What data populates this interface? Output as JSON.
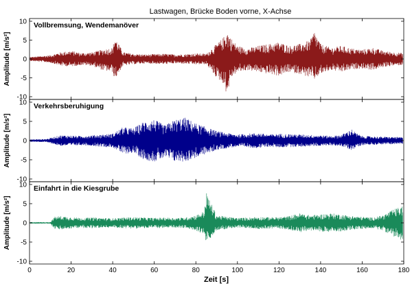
{
  "chart_data": {
    "type": "line",
    "title": "Lastwagen, Brücke Boden vorne, X-Achse",
    "xlabel": "Zeit [s]",
    "ylabel": "Amplitude [m/s²]",
    "xlim": [
      0,
      180
    ],
    "ylim": [
      -10,
      10
    ],
    "xticks": [
      "0",
      "20",
      "40",
      "60",
      "80",
      "100",
      "120",
      "140",
      "160",
      "180"
    ],
    "yticks": [
      "10",
      "5",
      "0",
      "-5",
      "-10"
    ],
    "grid": false,
    "panels": [
      {
        "label": "Vollbremsung, Wendemanöver",
        "color": "#8b1a1a",
        "envelope": {
          "x": [
            0,
            10,
            15,
            20,
            25,
            30,
            35,
            40,
            41,
            45,
            50,
            55,
            60,
            65,
            70,
            75,
            80,
            85,
            90,
            93,
            95,
            97,
            100,
            105,
            110,
            115,
            120,
            125,
            130,
            135,
            137,
            140,
            145,
            150,
            155,
            160,
            165,
            170,
            175,
            180
          ],
          "upper": [
            0.5,
            1.0,
            1.8,
            2.2,
            1.6,
            1.8,
            2.5,
            3.0,
            6.0,
            1.8,
            1.4,
            1.2,
            1.3,
            1.4,
            1.2,
            1.3,
            1.5,
            1.4,
            4.0,
            5.5,
            7.5,
            5.5,
            3.5,
            2.8,
            3.5,
            4.0,
            4.5,
            3.5,
            4.0,
            5.0,
            7.5,
            4.0,
            3.0,
            3.5,
            2.8,
            2.5,
            3.0,
            2.2,
            1.8,
            1.6
          ],
          "lower": [
            -0.5,
            -1.0,
            -1.8,
            -2.0,
            -1.6,
            -1.8,
            -3.0,
            -3.5,
            -5.5,
            -1.8,
            -1.4,
            -1.2,
            -1.3,
            -1.4,
            -1.2,
            -1.3,
            -1.5,
            -1.4,
            -5.0,
            -6.5,
            -9.5,
            -5.0,
            -3.5,
            -3.0,
            -3.5,
            -4.0,
            -4.5,
            -3.5,
            -4.0,
            -5.0,
            -5.5,
            -4.0,
            -3.0,
            -3.5,
            -2.8,
            -2.5,
            -3.0,
            -2.2,
            -1.8,
            -1.6
          ]
        }
      },
      {
        "label": "Verkehrsberuhigung",
        "color": "#00008b",
        "envelope": {
          "x": [
            0,
            8,
            12,
            15,
            20,
            25,
            30,
            35,
            40,
            45,
            50,
            55,
            60,
            65,
            70,
            75,
            80,
            85,
            90,
            95,
            100,
            105,
            110,
            115,
            120,
            130,
            140,
            145,
            150,
            155,
            157,
            160,
            170,
            180
          ],
          "upper": [
            0.3,
            0.4,
            1.0,
            1.4,
            1.3,
            1.2,
            1.4,
            1.6,
            1.8,
            3.5,
            3.2,
            5.0,
            5.5,
            4.0,
            5.5,
            6.0,
            4.5,
            3.5,
            2.5,
            2.0,
            1.6,
            1.8,
            2.0,
            1.6,
            1.8,
            1.6,
            1.4,
            1.2,
            1.5,
            3.0,
            2.0,
            1.2,
            1.0,
            0.9
          ],
          "lower": [
            -0.3,
            -0.4,
            -1.0,
            -1.4,
            -1.3,
            -1.2,
            -1.4,
            -1.6,
            -1.8,
            -3.5,
            -3.2,
            -5.0,
            -5.5,
            -4.5,
            -5.5,
            -5.5,
            -4.5,
            -3.5,
            -2.5,
            -2.0,
            -1.6,
            -1.8,
            -2.0,
            -1.6,
            -1.8,
            -1.6,
            -1.4,
            -1.2,
            -1.5,
            -2.5,
            -1.8,
            -1.2,
            -1.0,
            -0.9
          ]
        }
      },
      {
        "label": "Einfahrt in die Kiesgrube",
        "color": "#1a8a5a",
        "envelope": {
          "x": [
            0,
            10,
            12,
            15,
            20,
            25,
            30,
            35,
            40,
            45,
            50,
            55,
            60,
            65,
            70,
            75,
            80,
            84,
            85,
            90,
            95,
            100,
            105,
            110,
            115,
            120,
            125,
            130,
            135,
            140,
            145,
            150,
            155,
            160,
            165,
            170,
            175,
            180
          ],
          "upper": [
            0.2,
            0.2,
            1.6,
            1.8,
            1.5,
            1.3,
            1.4,
            1.3,
            1.2,
            1.4,
            1.5,
            1.4,
            1.3,
            1.4,
            1.3,
            1.4,
            2.0,
            3.0,
            8.0,
            2.0,
            1.6,
            1.3,
            1.4,
            1.6,
            1.5,
            1.5,
            1.8,
            2.5,
            2.0,
            2.2,
            2.5,
            2.2,
            1.8,
            1.6,
            1.4,
            2.0,
            3.5,
            4.5
          ],
          "lower": [
            -0.2,
            -0.2,
            -1.6,
            -1.8,
            -1.5,
            -1.3,
            -1.4,
            -1.3,
            -1.2,
            -1.4,
            -1.5,
            -1.4,
            -1.3,
            -1.4,
            -1.3,
            -1.4,
            -2.0,
            -3.0,
            -5.5,
            -2.0,
            -1.6,
            -1.3,
            -1.4,
            -1.6,
            -1.5,
            -1.5,
            -1.8,
            -2.5,
            -2.0,
            -2.2,
            -2.5,
            -2.2,
            -1.8,
            -1.6,
            -1.4,
            -2.0,
            -3.5,
            -5.0
          ]
        }
      }
    ]
  }
}
